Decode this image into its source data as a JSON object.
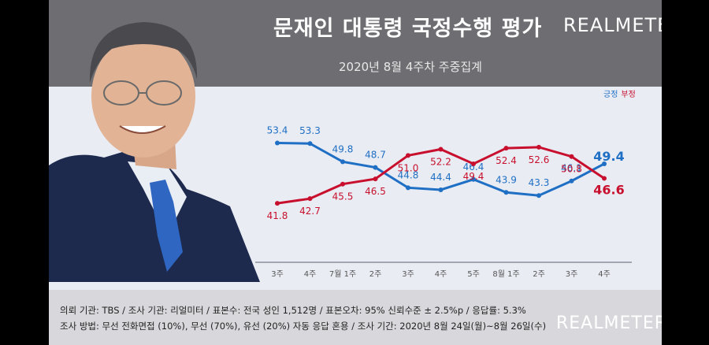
{
  "header": {
    "title": "문재인 대통령 국정수행 평가",
    "subtitle": "2020년 8월 4주차 주중집계",
    "brand": "REALMETER"
  },
  "legend": {
    "positive": "긍정",
    "negative": "부정"
  },
  "colors": {
    "positive": "#1f6fc4",
    "negative": "#c8102e"
  },
  "chart_data": {
    "type": "line",
    "categories": [
      "3주",
      "4주",
      "7월 1주",
      "2주",
      "3주",
      "4주",
      "5주",
      "8월 1주",
      "2주",
      "3주",
      "4주"
    ],
    "series": [
      {
        "name": "긍정",
        "values": [
          53.4,
          53.3,
          49.8,
          48.7,
          44.8,
          44.4,
          46.4,
          43.9,
          43.3,
          46.1,
          49.4
        ]
      },
      {
        "name": "부정",
        "values": [
          41.8,
          42.7,
          45.5,
          46.5,
          51.0,
          52.2,
          49.4,
          52.4,
          52.6,
          50.8,
          46.6
        ]
      }
    ],
    "value_labels": {
      "positive": [
        "53.4",
        "53.3",
        "49.8",
        "48.7",
        "44.8",
        "44.4",
        "46.4",
        "43.9",
        "43.3",
        "46.1",
        "49.4"
      ],
      "negative": [
        "41.8",
        "42.7",
        "45.5",
        "46.5",
        "51.0",
        "52.2",
        "49.4",
        "52.4",
        "52.6",
        "50.8",
        "46.6"
      ]
    },
    "title": "",
    "xlabel": "",
    "ylabel": "",
    "grid": false,
    "legend_position": "top-right"
  },
  "footer": {
    "line1": "의뢰 기관: TBS / 조사 기관: 리얼미터 / 표본수: 전국 성인 1,512명 / 표본오차: 95% 신뢰수준 ± 2.5%p / 응답률: 5.3%",
    "line2": "조사 방법: 무선 전화면접 (10%), 무선 (70%), 유선 (20%) 자동 응답 혼용 / 조사 기간: 2020년 8월 24일(월)~8월 26일(수)",
    "brand": "REALMETER"
  }
}
